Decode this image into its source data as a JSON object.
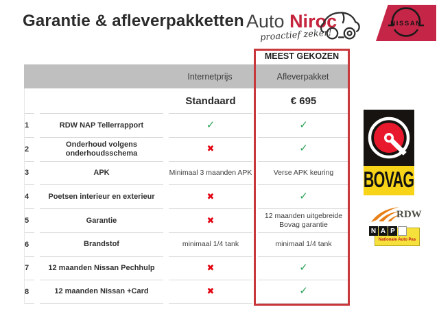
{
  "header": {
    "title": "Garantie & afleverpakketten",
    "brand": {
      "auto": "Auto",
      "niroc": "Niroc",
      "tagline": "proactief zeker!"
    },
    "nissan_label": "NISSAN"
  },
  "table": {
    "most_chosen_label": "MEEST GEKOZEN",
    "columns": {
      "internet": "Internetprijs",
      "aflever": "Afleverpakket"
    },
    "price_row": {
      "internet": "Standaard",
      "aflever": "€ 695"
    },
    "rows": [
      {
        "num": "1",
        "feature": "RDW NAP Tellerrapport",
        "internet": "CHECK",
        "aflever": "CHECK"
      },
      {
        "num": "2",
        "feature": "Onderhoud volgens onderhoudsschema",
        "internet": "CROSS",
        "aflever": "CHECK"
      },
      {
        "num": "3",
        "feature": "APK",
        "internet": "Minimaal 3 maanden APK",
        "aflever": "Verse APK keuring"
      },
      {
        "num": "4",
        "feature": "Poetsen interieur en exterieur",
        "internet": "CROSS",
        "aflever": "CHECK"
      },
      {
        "num": "5",
        "feature": "Garantie",
        "internet": "CROSS",
        "aflever": "12 maanden uitgebreide Bovag garantie"
      },
      {
        "num": "6",
        "feature": "Brandstof",
        "internet": "minimaal 1/4 tank",
        "aflever": "minimaal 1/4 tank"
      },
      {
        "num": "7",
        "feature": "12 maanden Nissan Pechhulp",
        "internet": "CROSS",
        "aflever": "CHECK"
      },
      {
        "num": "8",
        "feature": "12 maanden Nissan +Card",
        "internet": "CROSS",
        "aflever": "CHECK"
      }
    ]
  },
  "symbols": {
    "check": "✓",
    "cross": "✖"
  },
  "logos": {
    "bovag": "BOVAG",
    "rdw": "RDW",
    "nap": {
      "letters": [
        "N",
        "A",
        "P"
      ],
      "subtitle": "Nationale Auto Pas"
    }
  },
  "colors": {
    "accent_red": "#c9383c",
    "nissan_red": "#c52547",
    "niroc_red": "#c4243c",
    "check_green": "#2aa257",
    "cross_red": "#e30613",
    "header_gray": "#bfbfbf",
    "bovag_yellow": "#f7d417",
    "bovag_red": "#e8192c",
    "rdw_orange": "#e87f16",
    "nap_yellow": "#f6e03c"
  }
}
